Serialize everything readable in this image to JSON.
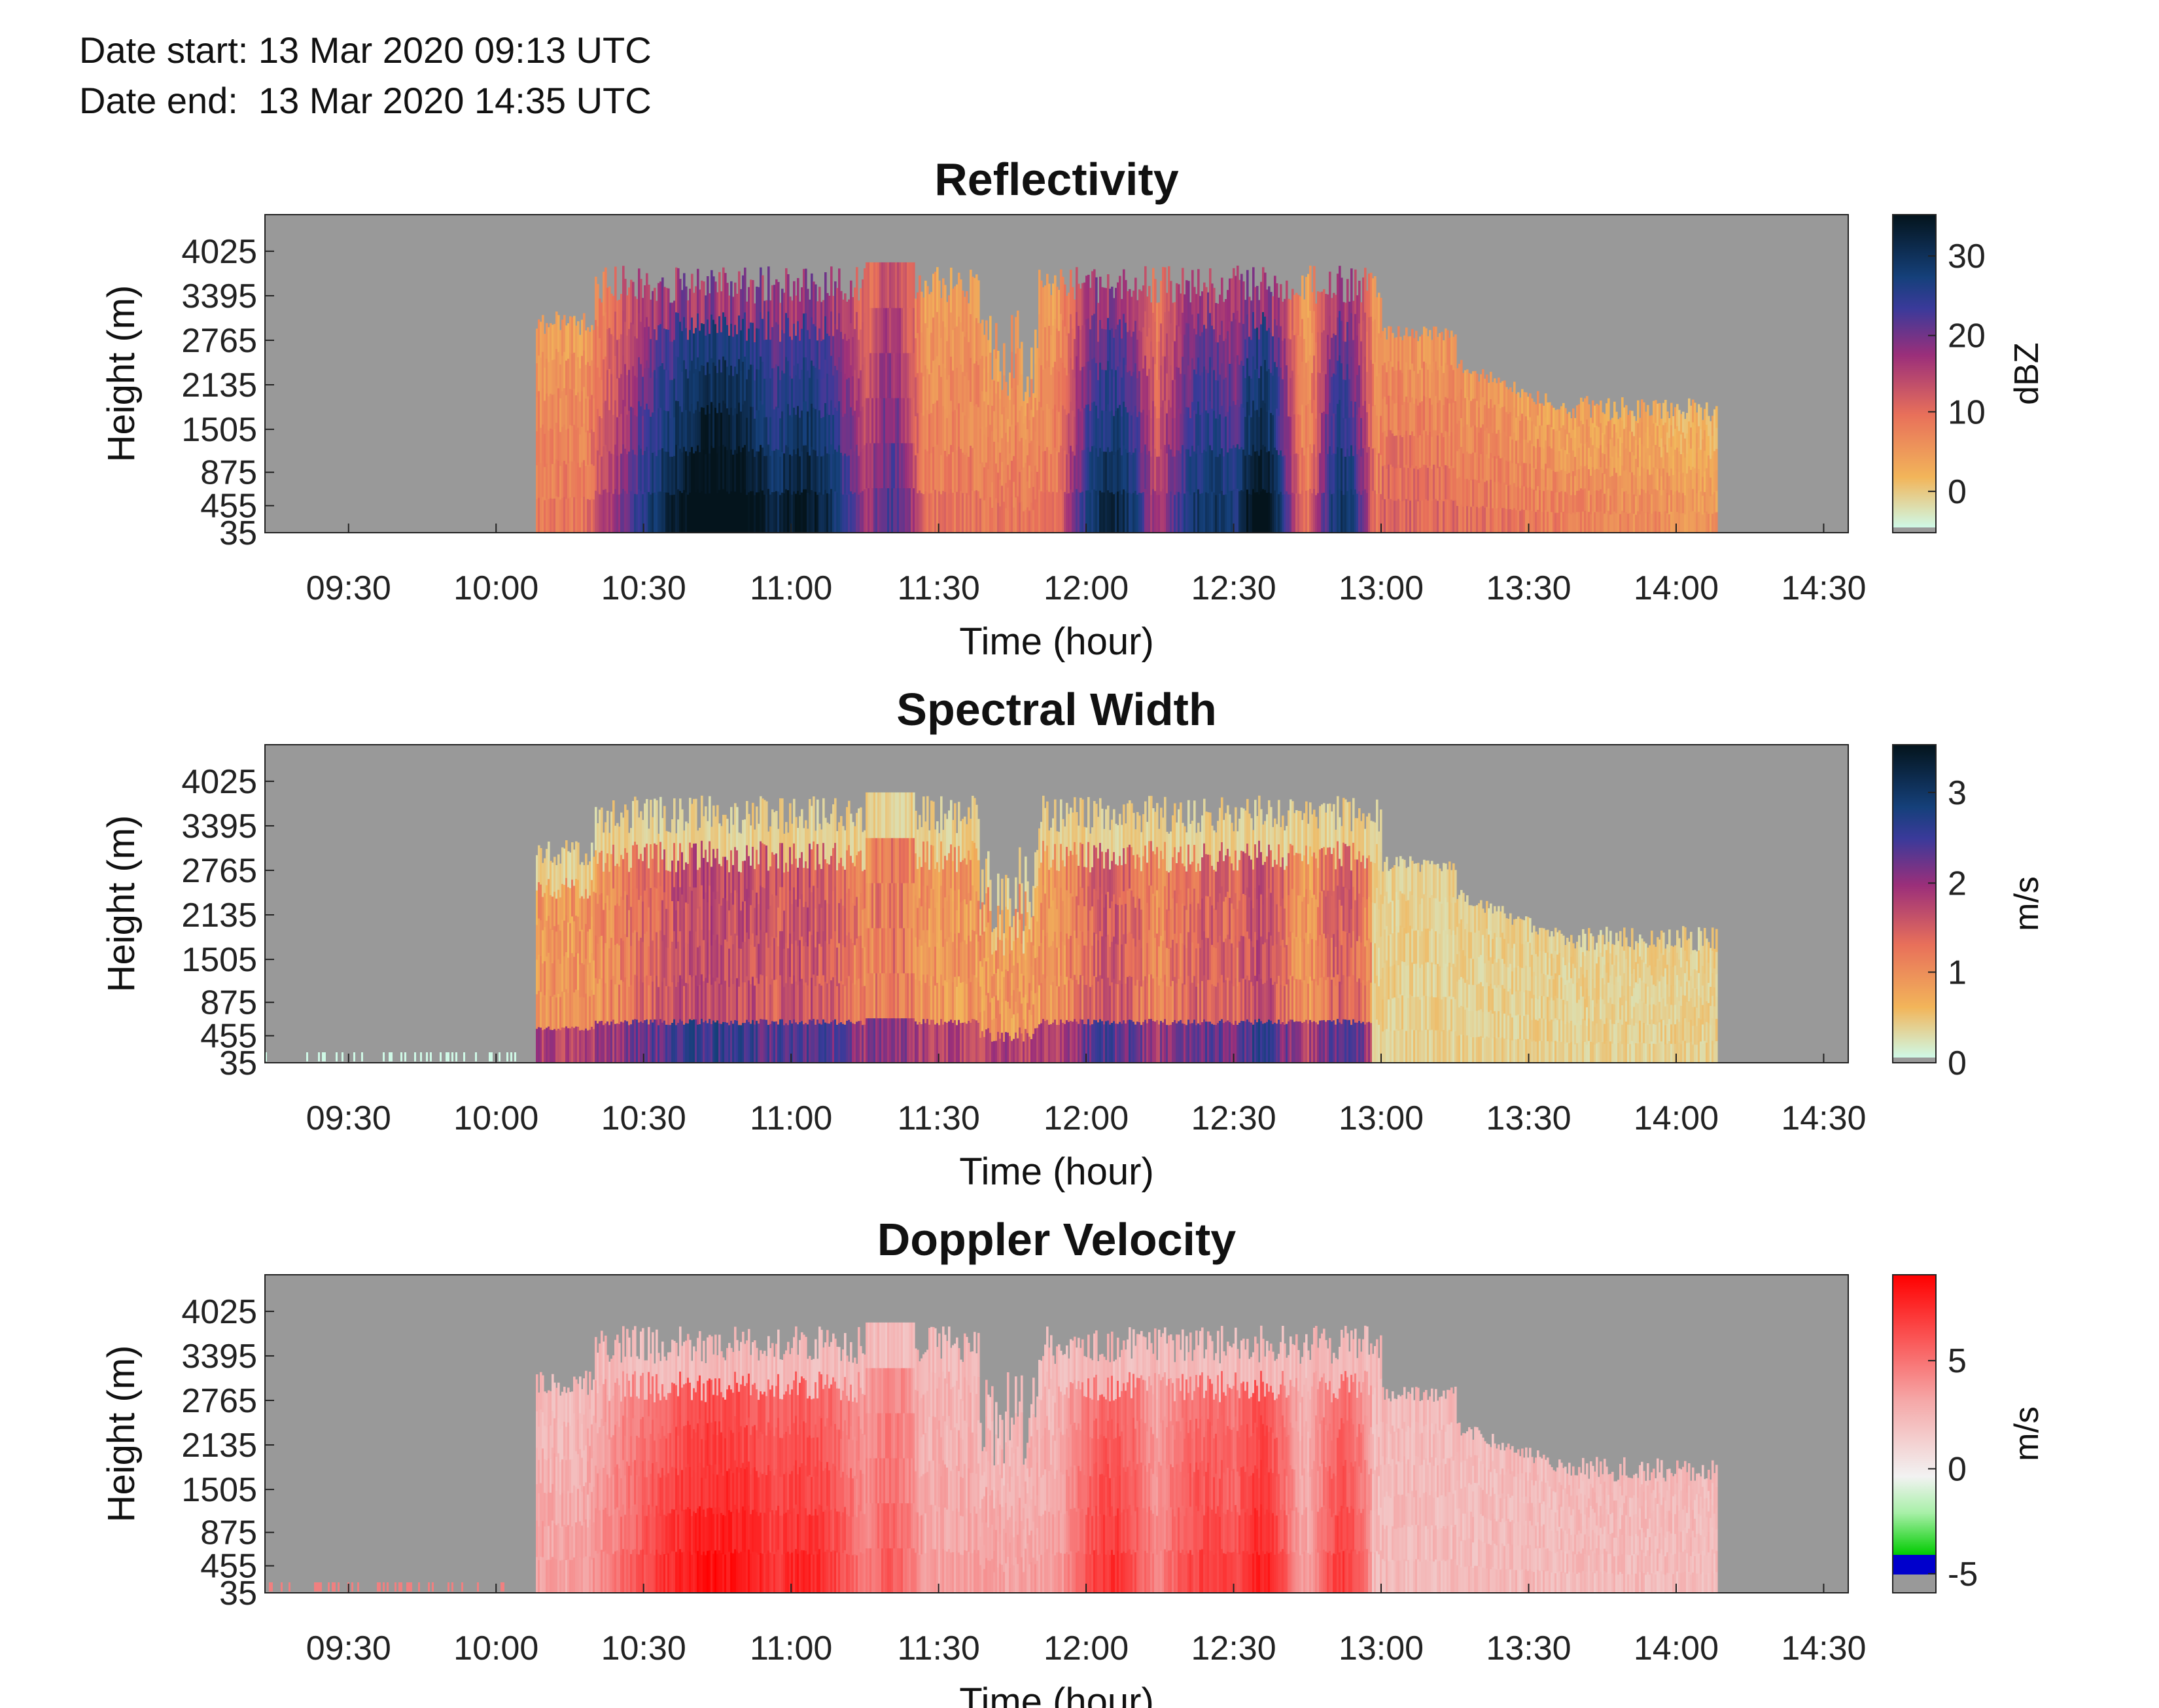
{
  "header": {
    "date_start": "Date start: 13 Mar 2020 09:13 UTC",
    "date_end": "Date end:  13 Mar 2020 14:35 UTC"
  },
  "chart_data": [
    {
      "type": "heatmap",
      "title": "Reflectivity",
      "xlabel": "Time (hour)",
      "ylabel": "Height (m)",
      "xticks": [
        "09:30",
        "10:00",
        "10:30",
        "11:00",
        "11:30",
        "12:00",
        "12:30",
        "13:00",
        "13:30",
        "14:00",
        "14:30"
      ],
      "yticks": [
        "35",
        "455",
        "875",
        "1505",
        "2135",
        "2765",
        "3395",
        "4025"
      ],
      "colorbar": {
        "label": "dBZ",
        "ticks": [
          "0",
          "10",
          "20",
          "30"
        ],
        "colors": [
          "#cff9e6",
          "#f2b55a",
          "#e8705a",
          "#9b2f7a",
          "#3a3a9a",
          "#15407a",
          "#04141c"
        ]
      },
      "background": "#999999",
      "echo_time_range": [
        "10:08",
        "14:08"
      ],
      "echo_height_max": 4025
    },
    {
      "type": "heatmap",
      "title": "Spectral Width",
      "xlabel": "Time (hour)",
      "ylabel": "Height (m)",
      "xticks": [
        "09:30",
        "10:00",
        "10:30",
        "11:00",
        "11:30",
        "12:00",
        "12:30",
        "13:00",
        "13:30",
        "14:00",
        "14:30"
      ],
      "yticks": [
        "35",
        "455",
        "875",
        "1505",
        "2135",
        "2765",
        "3395",
        "4025"
      ],
      "colorbar": {
        "label": "m/s",
        "ticks": [
          "0",
          "1",
          "2",
          "3"
        ],
        "colors": [
          "#cff9e6",
          "#f2b55a",
          "#e8705a",
          "#9b2f7a",
          "#3a3a9a",
          "#15407a",
          "#04141c"
        ]
      },
      "background": "#999999"
    },
    {
      "type": "heatmap",
      "title": "Doppler Velocity",
      "xlabel": "Time (hour)",
      "ylabel": "Height (m)",
      "xticks": [
        "09:30",
        "10:00",
        "10:30",
        "11:00",
        "11:30",
        "12:00",
        "12:30",
        "13:00",
        "13:30",
        "14:00",
        "14:30"
      ],
      "yticks": [
        "35",
        "455",
        "875",
        "1505",
        "2135",
        "2765",
        "3395",
        "4025"
      ],
      "colorbar": {
        "label": "m/s",
        "ticks": [
          "5",
          "0",
          "-5"
        ],
        "colors": [
          "#ff0000",
          "#f6a0a0",
          "#f0f0f0",
          "#00dd00",
          "#0000cc",
          "#999999"
        ]
      },
      "background": "#999999"
    }
  ]
}
